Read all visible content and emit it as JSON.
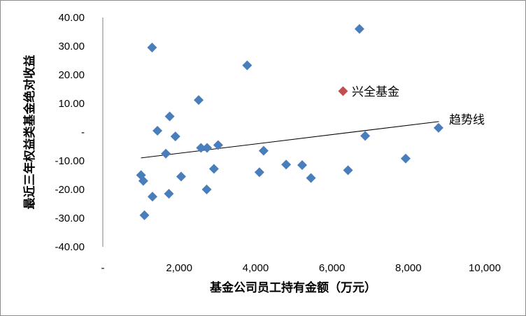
{
  "chart_data": {
    "type": "scatter",
    "title": "",
    "xlabel": "基金公司员工持有金额（万元）",
    "ylabel": "最近三年权益类基金绝对收益",
    "xlim": [
      0,
      10000
    ],
    "ylim": [
      -40,
      40
    ],
    "x_ticks": [
      0,
      2000,
      4000,
      6000,
      8000,
      10000
    ],
    "x_tick_labels": [
      "-",
      "2,000",
      "4,000",
      "6,000",
      "8,000",
      "10,000"
    ],
    "y_ticks": [
      40,
      30,
      20,
      10,
      0,
      -10,
      -20,
      -30,
      -40
    ],
    "y_tick_labels": [
      "40.00",
      "30.00",
      "20.00",
      "10.00",
      "-",
      "-10.00",
      "-20.00",
      "-30.00",
      "-40.00"
    ],
    "grid": false,
    "colors": {
      "points": "#4a7ebb",
      "highlight": "#c0504d",
      "trend": "#000000"
    },
    "series": [
      {
        "points": [
          [
            1290,
            29.5
          ],
          [
            1750,
            5.5
          ],
          [
            1430,
            0.5
          ],
          [
            1900,
            -1.5
          ],
          [
            1650,
            -7.5
          ],
          [
            1000,
            -15
          ],
          [
            1060,
            -17
          ],
          [
            1090,
            -29
          ],
          [
            1300,
            -22.5
          ],
          [
            1730,
            -21.5
          ],
          [
            2050,
            -15.5
          ],
          [
            2510,
            11.2
          ],
          [
            2570,
            -5.5
          ],
          [
            2730,
            -5.5
          ],
          [
            2720,
            -20
          ],
          [
            2910,
            -12.8
          ],
          [
            3020,
            -4.5
          ],
          [
            3780,
            23.3
          ],
          [
            4100,
            -14
          ],
          [
            4210,
            -6.5
          ],
          [
            4800,
            -11.3
          ],
          [
            5220,
            -11.5
          ],
          [
            5450,
            -16
          ],
          [
            6420,
            -13.3
          ],
          [
            6720,
            36
          ],
          [
            6870,
            -1.3
          ],
          [
            7930,
            -9.2
          ],
          [
            8790,
            1.5
          ]
        ]
      },
      {
        "name": "兴全基金",
        "points": [
          [
            6290,
            14.3
          ]
        ]
      }
    ],
    "trendline": {
      "label": "趋势线",
      "start": [
        1000,
        -9
      ],
      "end": [
        8800,
        3.7
      ]
    }
  }
}
